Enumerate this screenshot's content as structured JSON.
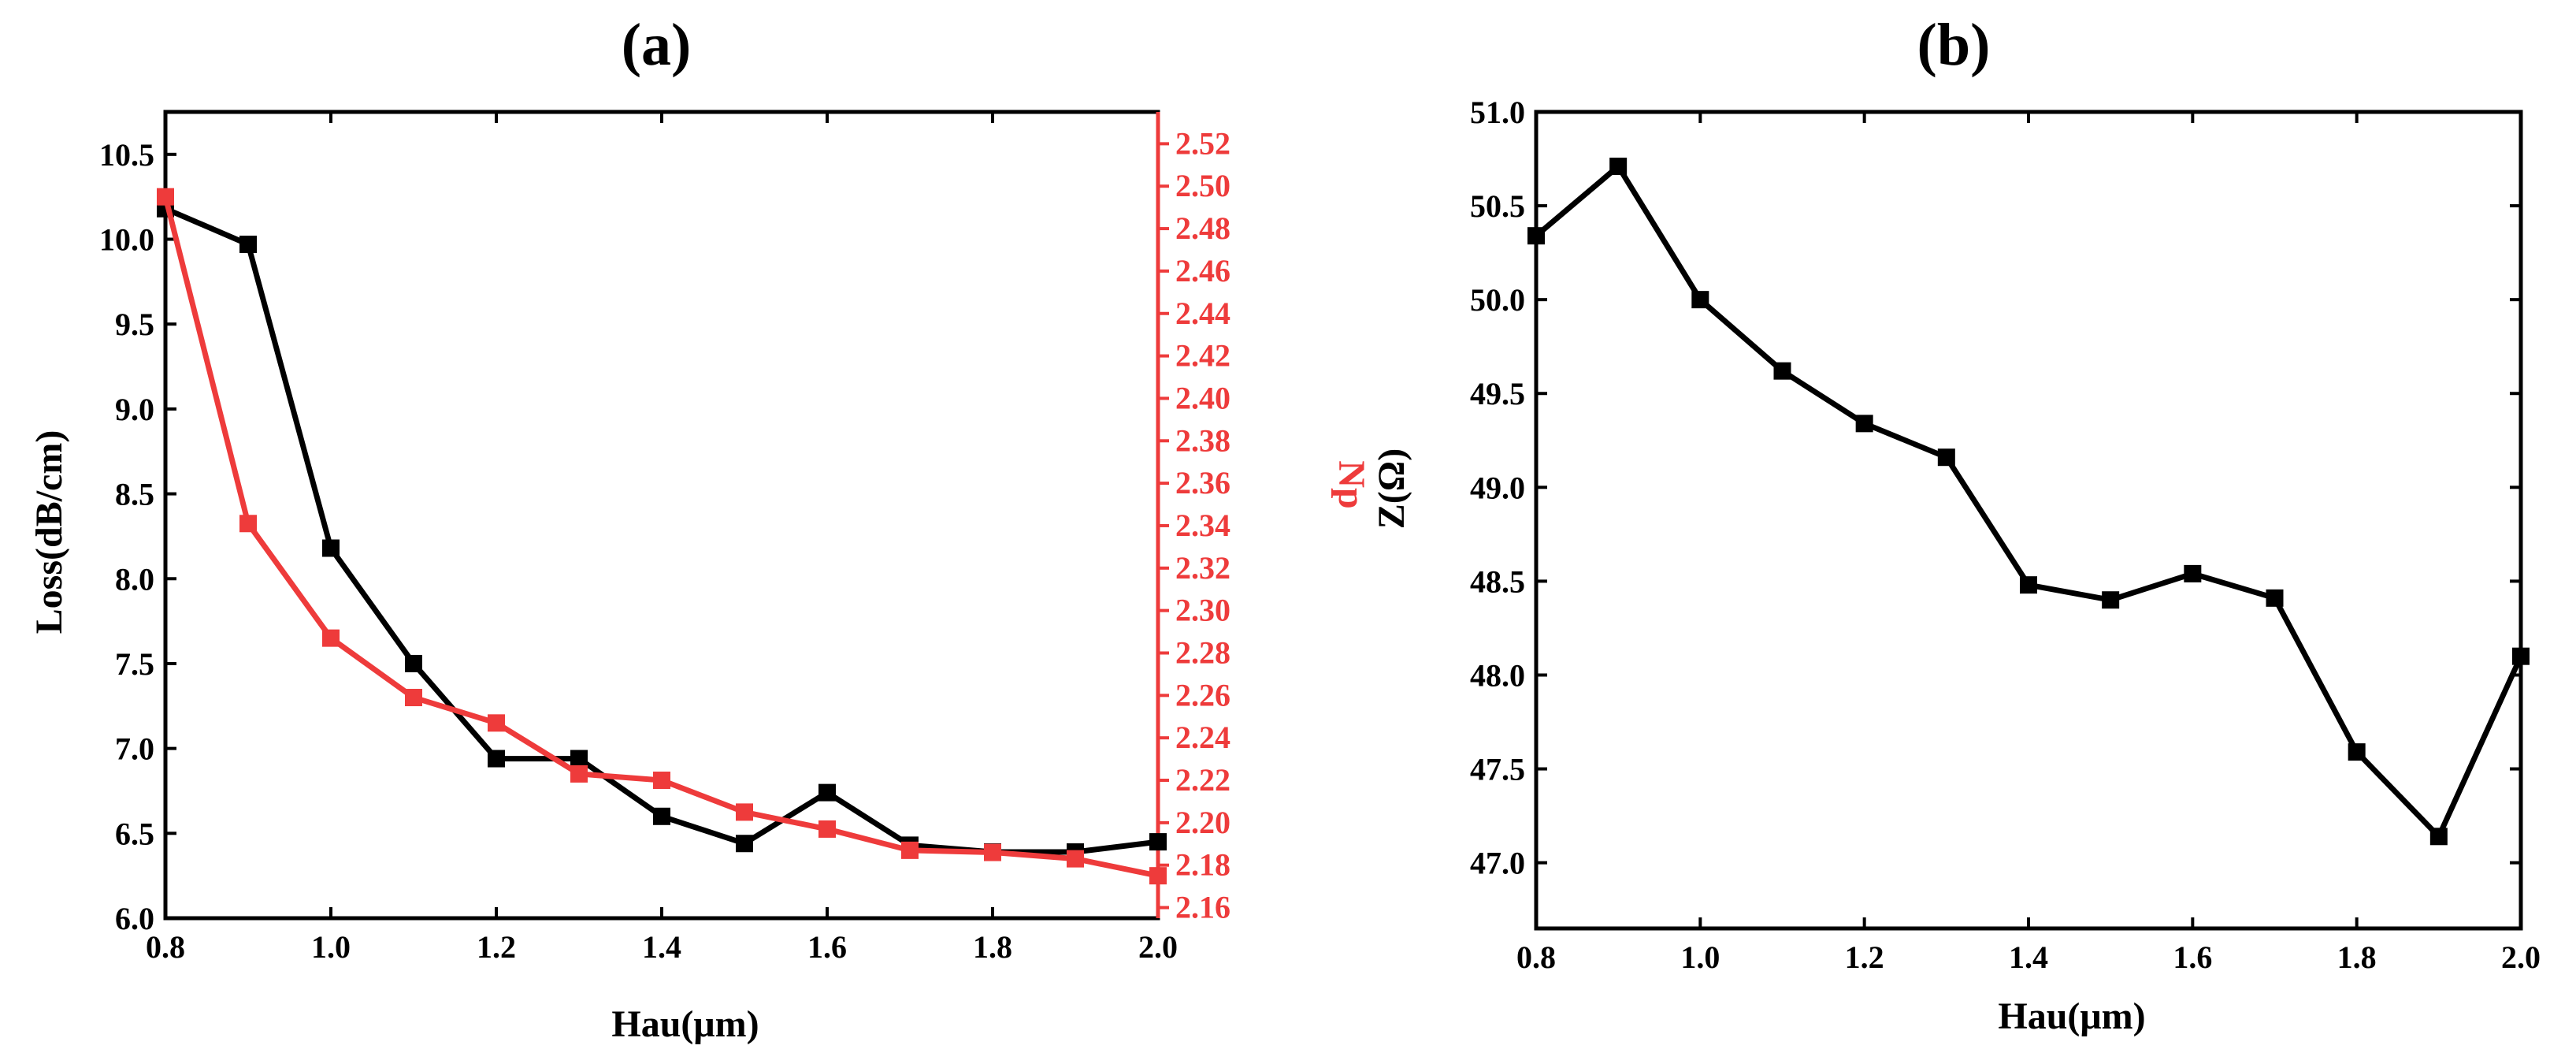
{
  "chart_data": [
    {
      "type": "line",
      "panel_label": "(a)",
      "xlabel": "Hau(μm)",
      "ylabel": "Loss(dB/cm)",
      "y2label": "Np",
      "xlim": [
        0.8,
        2.0
      ],
      "ylim": [
        6.0,
        10.75
      ],
      "y2lim": [
        2.155,
        2.535
      ],
      "x_ticks": [
        "0.8",
        "1.0",
        "1.2",
        "1.4",
        "1.6",
        "1.8",
        "2.0"
      ],
      "y_ticks": [
        "6.0",
        "6.5",
        "7.0",
        "7.5",
        "8.0",
        "8.5",
        "9.0",
        "9.5",
        "10.0",
        "10.5"
      ],
      "y2_ticks": [
        "2.16",
        "2.18",
        "2.20",
        "2.22",
        "2.24",
        "2.26",
        "2.28",
        "2.30",
        "2.32",
        "2.34",
        "2.36",
        "2.38",
        "2.40",
        "2.42",
        "2.44",
        "2.46",
        "2.48",
        "2.50",
        "2.52"
      ],
      "grid": false,
      "series": [
        {
          "axis": "left",
          "color": "#000000",
          "marker": "square",
          "x": [
            0.8,
            0.9,
            1.0,
            1.1,
            1.2,
            1.3,
            1.4,
            1.5,
            1.6,
            1.7,
            1.8,
            1.9,
            2.0
          ],
          "y": [
            10.18,
            9.97,
            8.18,
            7.5,
            6.94,
            6.94,
            6.6,
            6.44,
            6.74,
            6.43,
            6.39,
            6.39,
            6.45
          ]
        },
        {
          "axis": "right",
          "color": "#ee3b3b",
          "marker": "square",
          "x": [
            0.8,
            0.9,
            1.0,
            1.1,
            1.2,
            1.3,
            1.4,
            1.5,
            1.6,
            1.7,
            1.8,
            1.9,
            2.0
          ],
          "y": [
            2.495,
            2.341,
            2.287,
            2.259,
            2.247,
            2.223,
            2.22,
            2.205,
            2.197,
            2.187,
            2.186,
            2.183,
            2.175
          ]
        }
      ]
    },
    {
      "type": "line",
      "panel_label": "(b)",
      "xlabel": "Hau(μm)",
      "ylabel": "Z(Ω)",
      "xlim": [
        0.8,
        2.0
      ],
      "ylim": [
        46.65,
        51.0
      ],
      "x_ticks": [
        "0.8",
        "1.0",
        "1.2",
        "1.4",
        "1.6",
        "1.8",
        "2.0"
      ],
      "y_ticks": [
        "47.0",
        "47.5",
        "48.0",
        "48.5",
        "49.0",
        "49.5",
        "50.0",
        "50.5",
        "51.0"
      ],
      "grid": false,
      "series": [
        {
          "axis": "left",
          "color": "#000000",
          "marker": "square",
          "x": [
            0.8,
            0.9,
            1.0,
            1.1,
            1.2,
            1.3,
            1.4,
            1.5,
            1.6,
            1.7,
            1.8,
            1.9,
            2.0
          ],
          "y": [
            50.34,
            50.71,
            50.0,
            49.62,
            49.34,
            49.16,
            48.48,
            48.4,
            48.54,
            48.41,
            47.59,
            47.14,
            48.1
          ]
        }
      ]
    }
  ]
}
